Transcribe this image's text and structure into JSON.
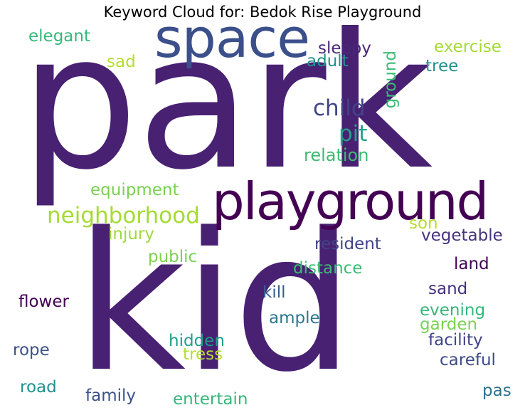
{
  "title": "Keyword Cloud for: Bedok Rise Playground",
  "words": [
    {
      "text": "park",
      "color": "#482173"
    },
    {
      "text": "kid",
      "color": "#482173"
    },
    {
      "text": "space",
      "color": "#3b4f8a"
    },
    {
      "text": "playground",
      "color": "#440154"
    },
    {
      "text": "neighborhood",
      "color": "#a5db36"
    },
    {
      "text": "child",
      "color": "#414487"
    },
    {
      "text": "pit",
      "color": "#2a9d8a"
    },
    {
      "text": "relation",
      "color": "#3dbc74"
    },
    {
      "text": "sleepy",
      "color": "#482878"
    },
    {
      "text": "adult",
      "color": "#21918c"
    },
    {
      "text": "ground",
      "color": "#3dbc74"
    },
    {
      "text": "elegant",
      "color": "#35b779"
    },
    {
      "text": "sad",
      "color": "#b5de2b"
    },
    {
      "text": "exercise",
      "color": "#a5db36"
    },
    {
      "text": "tree",
      "color": "#21918c"
    },
    {
      "text": "equipment",
      "color": "#7ad151"
    },
    {
      "text": "injury",
      "color": "#a0da39"
    },
    {
      "text": "son",
      "color": "#b5de2b"
    },
    {
      "text": "vegetable",
      "color": "#46337e"
    },
    {
      "text": "public",
      "color": "#7ad151"
    },
    {
      "text": "resident",
      "color": "#414487"
    },
    {
      "text": "land",
      "color": "#440154"
    },
    {
      "text": "distance",
      "color": "#3dbc74"
    },
    {
      "text": "flower",
      "color": "#440154"
    },
    {
      "text": "kill",
      "color": "#365c8d"
    },
    {
      "text": "sand",
      "color": "#46327e"
    },
    {
      "text": "ample",
      "color": "#2a788e"
    },
    {
      "text": "evening",
      "color": "#35b779"
    },
    {
      "text": "garden",
      "color": "#7ad151"
    },
    {
      "text": "hidden",
      "color": "#1f9e89"
    },
    {
      "text": "facility",
      "color": "#414487"
    },
    {
      "text": "rope",
      "color": "#3b528b"
    },
    {
      "text": "tress",
      "color": "#b5de2b"
    },
    {
      "text": "careful",
      "color": "#3e4989"
    },
    {
      "text": "road",
      "color": "#21918c"
    },
    {
      "text": "family",
      "color": "#3b528b"
    },
    {
      "text": "entertain",
      "color": "#35b779"
    },
    {
      "text": "pas",
      "color": "#2c728e"
    }
  ]
}
